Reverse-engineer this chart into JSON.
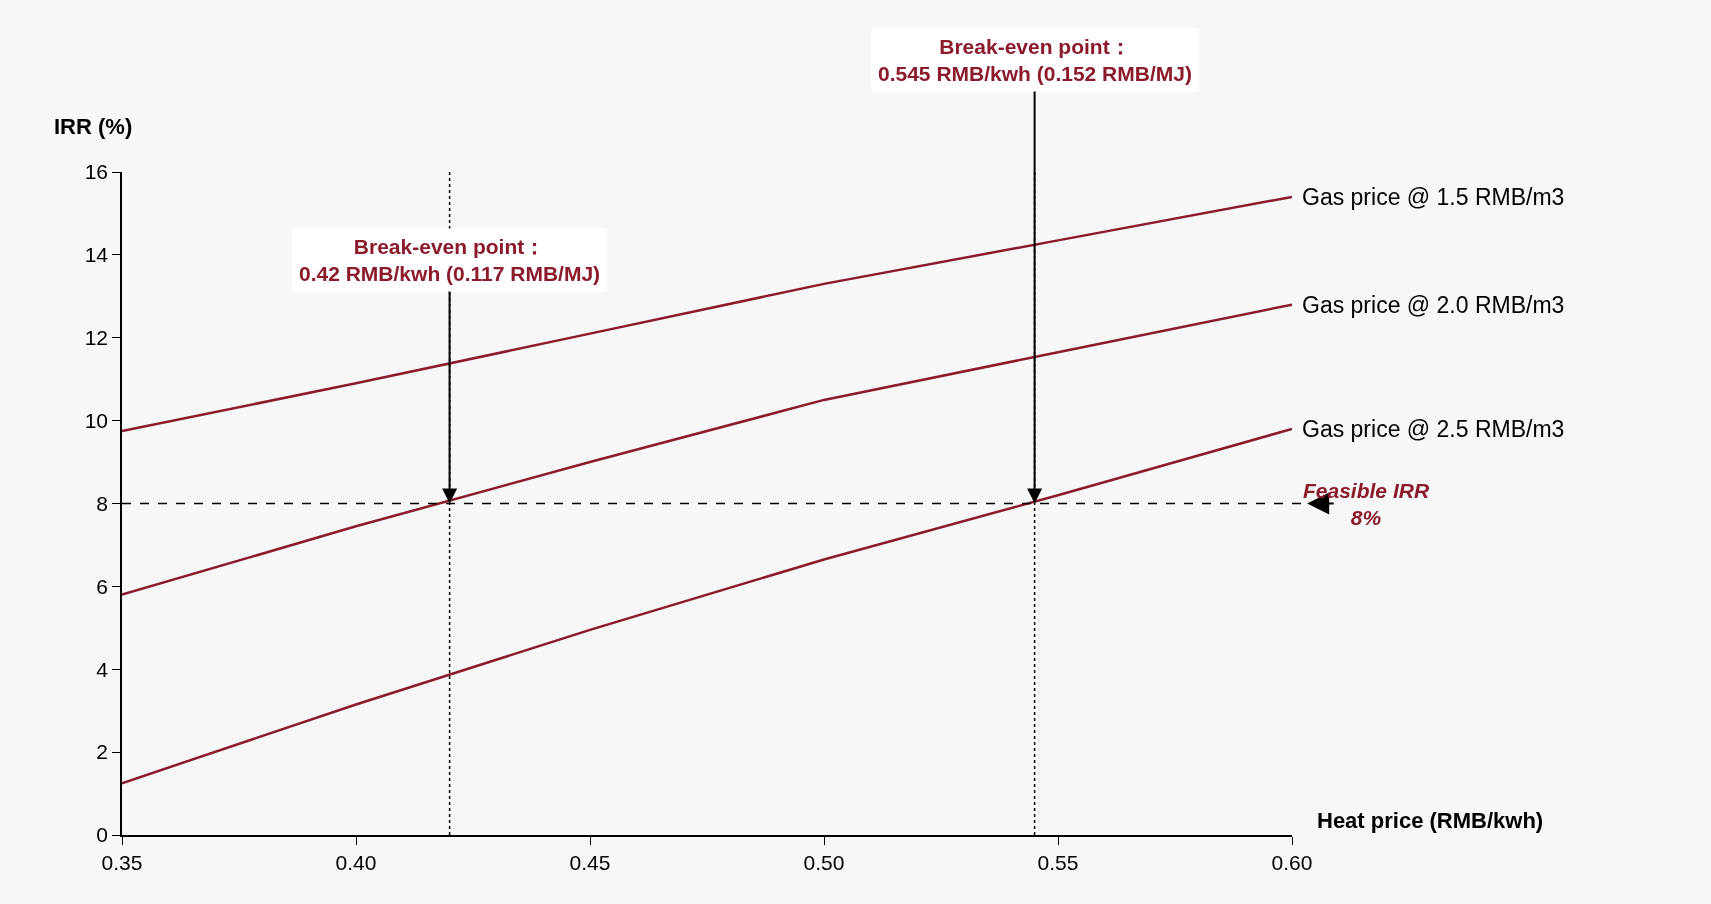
{
  "chart_data": {
    "type": "line",
    "xlabel": "Heat price (RMB/kwh)",
    "ylabel": "IRR (%)",
    "x": [
      0.35,
      0.4,
      0.45,
      0.5,
      0.55,
      0.6
    ],
    "series": [
      {
        "name": "Gas price @ 1.5 RMB/m3",
        "color": "#8b1a2b",
        "values": [
          9.75,
          10.9,
          12.1,
          13.3,
          14.35,
          15.4
        ]
      },
      {
        "name": "Gas price @ 2.0 RMB/m3",
        "color": "#8b1a2b",
        "values": [
          5.8,
          7.45,
          9.0,
          10.5,
          11.65,
          12.8
        ]
      },
      {
        "name": "Gas price @ 2.5 RMB/m3",
        "color": "#8b1a2b",
        "values": [
          1.25,
          3.15,
          4.95,
          6.65,
          8.2,
          9.8
        ]
      }
    ],
    "xlim": [
      0.35,
      0.6
    ],
    "xticks": [
      {
        "value": 0.35,
        "label": "0.35"
      },
      {
        "value": 0.4,
        "label": "0.40"
      },
      {
        "value": 0.45,
        "label": "0.45"
      },
      {
        "value": 0.5,
        "label": "0.50"
      },
      {
        "value": 0.55,
        "label": "0.55"
      },
      {
        "value": 0.6,
        "label": "0.60"
      }
    ],
    "ylim": [
      0,
      16
    ],
    "yticks": [
      0,
      2,
      4,
      6,
      8,
      10,
      12,
      14,
      16
    ],
    "grid": false,
    "legend": false,
    "marker": "none",
    "line_style": "solid",
    "ref_lines": [
      {
        "axis": "y",
        "value": 8,
        "label": "Feasible IRR\n8%",
        "line_style": "dashed",
        "color": "#000000"
      },
      {
        "axis": "x",
        "value": 0.42,
        "line_style": "dotted",
        "color": "#000000"
      },
      {
        "axis": "x",
        "value": 0.545,
        "line_style": "dotted",
        "color": "#000000"
      }
    ],
    "annotations": [
      {
        "text": "Break-even point：\n0.42 RMB/kwh (0.117 RMB/MJ)",
        "x": 0.42,
        "y": 8
      },
      {
        "text": "Break-even point：\n0.545 RMB/kwh (0.152 RMB/MJ)",
        "x": 0.545,
        "y": 8
      }
    ]
  }
}
